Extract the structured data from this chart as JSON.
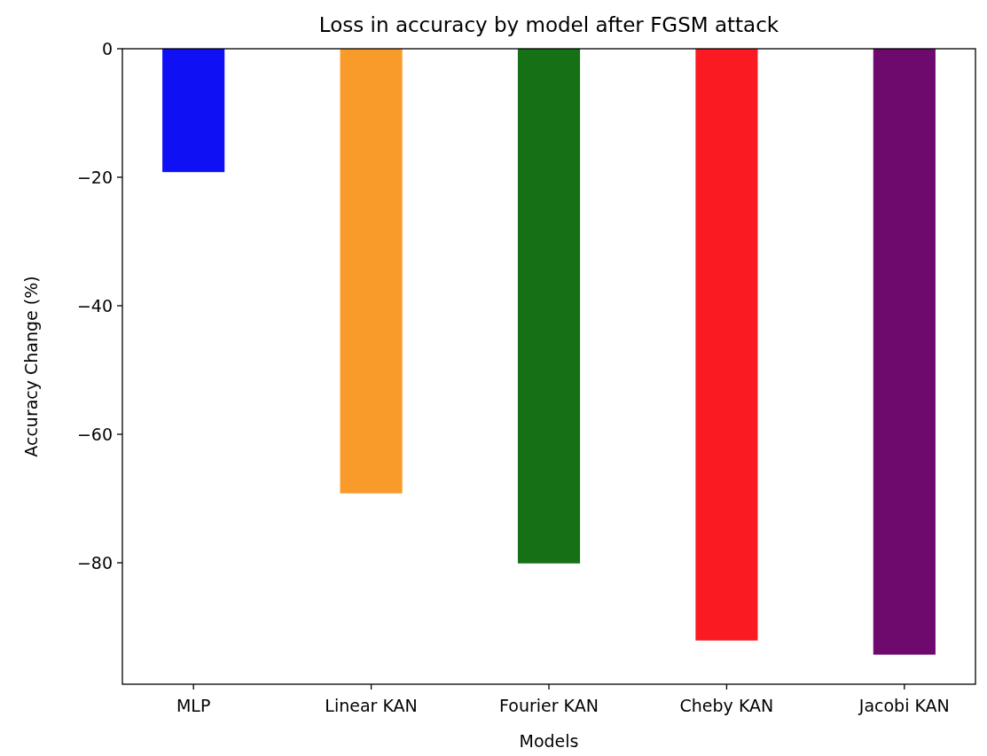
{
  "chart_data": {
    "type": "bar",
    "title": "Loss in accuracy by model after FGSM attack",
    "xlabel": "Models",
    "ylabel": "Accuracy Change (%)",
    "categories": [
      "MLP",
      "Linear KAN",
      "Fourier KAN",
      "Cheby KAN",
      "Jacobi KAN"
    ],
    "values": [
      -19.2,
      -69.2,
      -80.1,
      -92.1,
      -94.3
    ],
    "colors": [
      "#1010f5",
      "#f89b2a",
      "#167016",
      "#fa1a22",
      "#6e0a6e"
    ],
    "ylim": [
      -98.9,
      0
    ],
    "yticks": [
      0,
      -20,
      -40,
      -60,
      -80
    ]
  }
}
